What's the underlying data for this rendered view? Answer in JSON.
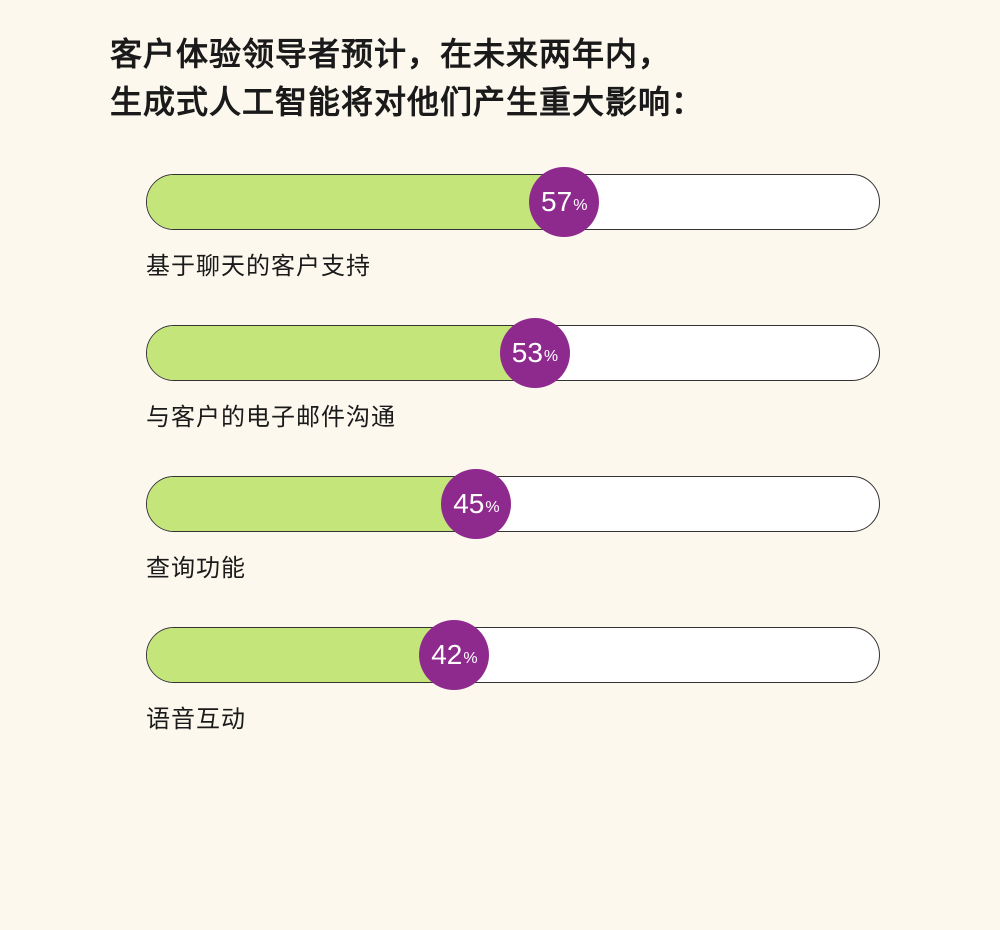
{
  "title_line1": "客户体验领导者预计，在未来两年内，",
  "title_line2": "生成式人工智能将对他们产生重大影响：",
  "percent_suffix": "%",
  "chart": {
    "type": "horizontal-progress-bars",
    "track_bg": "#ffffff",
    "track_border": "#333333",
    "fill_color": "#c4e57a",
    "knob_color": "#8e2a8e",
    "knob_text_color": "#ffffff",
    "background_color": "#fcf8ee",
    "title_color": "#1a1a1a",
    "label_color": "#1a1a1a",
    "title_fontsize": 32,
    "label_fontsize": 24,
    "knob_num_fontsize": 28,
    "knob_pct_fontsize": 16,
    "track_height": 56,
    "track_radius": 28,
    "knob_diameter": 70,
    "xlim": [
      0,
      100
    ],
    "items": [
      {
        "label": "基于聊天的客户支持",
        "value": 57
      },
      {
        "label": "与客户的电子邮件沟通",
        "value": 53
      },
      {
        "label": "查询功能",
        "value": 45
      },
      {
        "label": "语音互动",
        "value": 42
      }
    ]
  }
}
